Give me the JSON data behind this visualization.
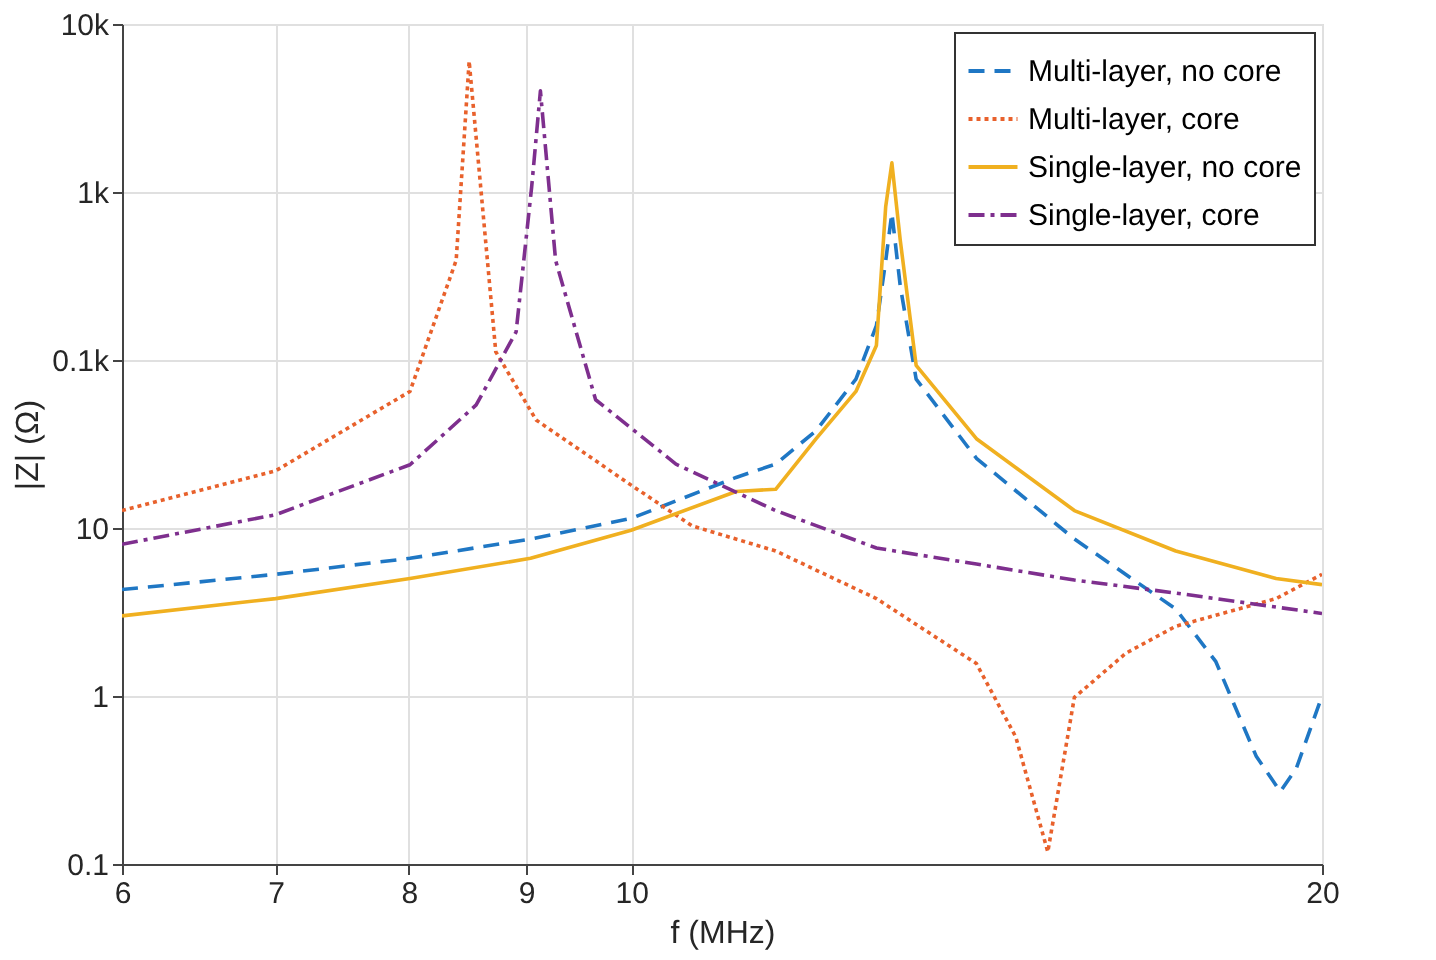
{
  "chart_data": {
    "type": "line",
    "xlabel": "f (MHz)",
    "ylabel": "|Z| (Ω)",
    "log": "xy",
    "grid": true,
    "legend": "top right",
    "marker": "none",
    "xlim": [
      6,
      20
    ],
    "xticks": [
      6,
      7,
      8,
      9,
      10,
      20
    ],
    "ylim": [
      0.1,
      10000
    ],
    "yticks": [
      0.1,
      1,
      10,
      {
        "value": 100,
        "label": "0.1k"
      },
      {
        "value": 1000,
        "label": "1k"
      },
      {
        "value": 10000,
        "label": "10k"
      }
    ],
    "series": [
      {
        "name": "Multi-layer, no core",
        "color": "#1f77c4",
        "line_style": "dashed",
        "x": [
          6,
          7,
          8.01,
          9.04,
          10,
          11.11,
          11.56,
          12.04,
          12.53,
          12.79,
          12.91,
          12.99,
          13.1,
          13.31,
          14.14,
          15.6,
          17.27,
          17.98,
          18.72,
          19.18,
          19.49,
          20
        ],
        "values": [
          4.3,
          5.3,
          6.6,
          8.6,
          11.4,
          20,
          24,
          38,
          77,
          160,
          390,
          750,
          275,
          77,
          26,
          8.6,
          3.3,
          1.6,
          0.44,
          0.27,
          0.37,
          1.0
        ]
      },
      {
        "name": "Multi-layer, core",
        "color": "#e8612c",
        "line_style": "dotted",
        "x": [
          6,
          7,
          8.01,
          8.39,
          8.5,
          8.73,
          9.09,
          10,
          10.63,
          11.56,
          12.79,
          14.14,
          14.71,
          15.19,
          15.6,
          16.43,
          17.27,
          19.1,
          20
        ],
        "values": [
          12.7,
          21.9,
          65,
          392,
          6000,
          112,
          44,
          18,
          10.3,
          7.3,
          3.8,
          1.56,
          0.57,
          0.118,
          0.98,
          1.8,
          2.6,
          3.8,
          5.3
        ]
      },
      {
        "name": "Single-layer, no core",
        "color": "#f0b020",
        "line_style": "solid",
        "x": [
          6,
          7,
          8.01,
          9.04,
          10,
          11.11,
          11.56,
          12.04,
          12.53,
          12.79,
          12.91,
          12.99,
          13.1,
          13.31,
          14.14,
          15.6,
          17.27,
          19.1,
          20
        ],
        "values": [
          3.0,
          3.8,
          5.0,
          6.6,
          9.7,
          16.5,
          17,
          34,
          65,
          122,
          820,
          1490,
          515,
          93,
          34,
          12.7,
          7.3,
          5.0,
          4.6
        ]
      },
      {
        "name": "Single-layer, core",
        "color": "#7e2f8e",
        "line_style": "dashdot",
        "x": [
          6,
          7,
          8.01,
          8.56,
          8.91,
          9.05,
          9.13,
          9.27,
          9.65,
          10.46,
          11.56,
          12.79,
          14.14,
          15.6,
          17.27,
          20
        ],
        "values": [
          8.0,
          12,
          23.8,
          54,
          147,
          1070,
          4000,
          392,
          58,
          24,
          12.7,
          7.6,
          6.1,
          4.9,
          4.1,
          3.1
        ]
      }
    ]
  }
}
